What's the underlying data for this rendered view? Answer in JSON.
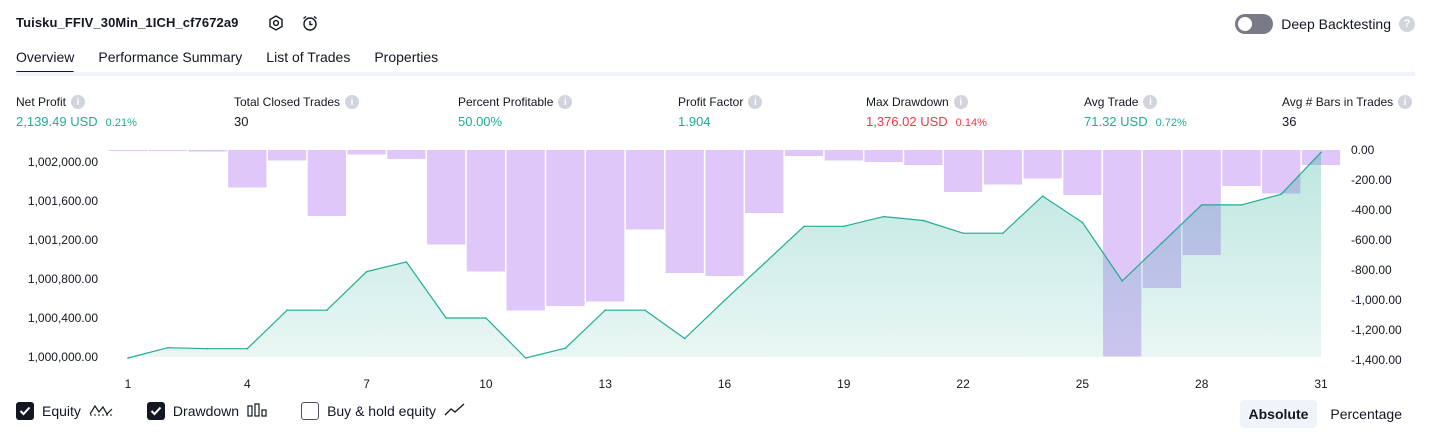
{
  "header": {
    "title": "Tuisku_FFIV_30Min_1ICH_cf7672a9",
    "deep_backtesting_label": "Deep Backtesting"
  },
  "tabs": [
    {
      "label": "Overview"
    },
    {
      "label": "Performance Summary"
    },
    {
      "label": "List of Trades"
    },
    {
      "label": "Properties"
    }
  ],
  "metrics": [
    {
      "label": "Net Profit",
      "value": "2,139.49 USD",
      "pct": "0.21%",
      "color": "green"
    },
    {
      "label": "Total Closed Trades",
      "value": "30",
      "pct": "",
      "color": "neutral"
    },
    {
      "label": "Percent Profitable",
      "value": "50.00%",
      "pct": "",
      "color": "green"
    },
    {
      "label": "Profit Factor",
      "value": "1.904",
      "pct": "",
      "color": "green"
    },
    {
      "label": "Max Drawdown",
      "value": "1,376.02 USD",
      "pct": "0.14%",
      "color": "red"
    },
    {
      "label": "Avg Trade",
      "value": "71.32 USD",
      "pct": "0.72%",
      "color": "green"
    },
    {
      "label": "Avg # Bars in Trades",
      "value": "36",
      "pct": "",
      "color": "neutral"
    }
  ],
  "chart_data": {
    "type": "area",
    "x": [
      1,
      2,
      3,
      4,
      5,
      6,
      7,
      8,
      9,
      10,
      11,
      12,
      13,
      14,
      15,
      16,
      17,
      18,
      19,
      20,
      21,
      22,
      23,
      24,
      25,
      26,
      27,
      28,
      29,
      30,
      31
    ],
    "x_ticks": [
      1,
      4,
      7,
      10,
      13,
      16,
      19,
      22,
      25,
      28,
      31
    ],
    "left_axis": {
      "ticks": [
        "1,000,000.00",
        "1,000,400.00",
        "1,000,800.00",
        "1,001,200.00",
        "1,001,600.00",
        "1,002,000.00"
      ],
      "tick_values": [
        1000000,
        1000400,
        1000800,
        1001200,
        1001600,
        1002000
      ],
      "range": [
        1000000,
        1002100
      ]
    },
    "right_axis": {
      "ticks": [
        "0.00",
        "-200.00",
        "-400.00",
        "-600.00",
        "-800.00",
        "-1,000.00",
        "-1,200.00",
        "-1,400.00"
      ],
      "tick_values": [
        0,
        -200,
        -400,
        -600,
        -800,
        -1000,
        -1200,
        -1400
      ],
      "range": [
        -1400,
        0
      ]
    },
    "series": [
      {
        "name": "Equity",
        "type": "area",
        "axis": "left",
        "color": "#22ab94",
        "values": [
          999990,
          1000095,
          1000085,
          1000085,
          1000480,
          1000480,
          1000875,
          1000975,
          1000400,
          1000400,
          999990,
          1000090,
          1000480,
          1000480,
          1000190,
          1000580,
          1000960,
          1001340,
          1001340,
          1001440,
          1001400,
          1001270,
          1001270,
          1001650,
          1001380,
          1000780,
          1001170,
          1001560,
          1001560,
          1001670,
          1002100
        ]
      },
      {
        "name": "Drawdown",
        "type": "bar",
        "axis": "right",
        "color": "#c9a2f7",
        "values": [
          0,
          0,
          -10,
          -250,
          -70,
          -440,
          -30,
          -60,
          -630,
          -810,
          -1070,
          -1040,
          -1010,
          -530,
          -820,
          -840,
          -420,
          -40,
          -70,
          -80,
          -100,
          -280,
          -230,
          -190,
          -300,
          -1376,
          -920,
          -700,
          -240,
          -290,
          -100
        ]
      }
    ]
  },
  "legend": {
    "equity_label": "Equity",
    "drawdown_label": "Drawdown",
    "buyhold_label": "Buy & hold equity"
  },
  "mode": {
    "absolute_label": "Absolute",
    "percentage_label": "Percentage"
  }
}
